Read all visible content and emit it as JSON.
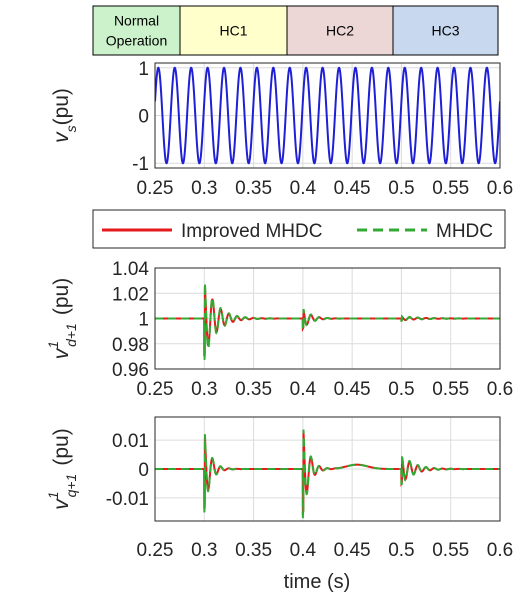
{
  "stages": [
    {
      "label_lines": [
        "Normal",
        "Operation"
      ],
      "color": "#ccf2cc"
    },
    {
      "label_lines": [
        "HC1"
      ],
      "color": "#ffffcc"
    },
    {
      "label_lines": [
        "HC2"
      ],
      "color": "#ecd6d6"
    },
    {
      "label_lines": [
        "HC3"
      ],
      "color": "#c8d8ee"
    }
  ],
  "legend": {
    "items": [
      {
        "label": "Improved MHDC",
        "color": "#e41a1c",
        "dash": "solid"
      },
      {
        "label": "MHDC",
        "color": "#33aa33",
        "dash": "dashed"
      }
    ]
  },
  "xaxis": {
    "title": "time (s)",
    "ticks": [
      "0.25",
      "0.3",
      "0.35",
      "0.4",
      "0.45",
      "0.5",
      "0.55",
      "0.6"
    ]
  },
  "chart_data": [
    {
      "type": "line",
      "ylabel_main": "v",
      "ylabel_sub": "s",
      "ylabel_unit": "(pu)",
      "xlim": [
        0.25,
        0.6
      ],
      "ylim": [
        -1.1,
        1.1
      ],
      "yticks": [
        "1",
        "0",
        "-1"
      ],
      "grid": true,
      "series": [
        {
          "color": "#1f1fd6",
          "signal": "sinusoid",
          "amplitude": 1.0,
          "frequency_hz": 60
        }
      ]
    },
    {
      "type": "line",
      "ylabel_main": "v",
      "ylabel_sup": "1",
      "ylabel_sub": "d+1",
      "ylabel_unit": "(pu)",
      "xlim": [
        0.25,
        0.6
      ],
      "ylim": [
        0.96,
        1.04
      ],
      "yticks": [
        "1.04",
        "1.02",
        "1",
        "0.98",
        "0.96"
      ],
      "grid": true,
      "series": [
        {
          "name": "Improved MHDC",
          "color": "#e41a1c",
          "baseline": 1.0,
          "transients": [
            {
              "t": 0.3,
              "amp": 0.03,
              "decay": 0.012
            },
            {
              "t": 0.4,
              "amp": 0.008,
              "decay": 0.008
            },
            {
              "t": 0.5,
              "amp": 0.0015,
              "decay": 0.02
            }
          ]
        },
        {
          "name": "MHDC",
          "color": "#33aa33",
          "baseline": 1.0,
          "transients": [
            {
              "t": 0.3,
              "amp": 0.033,
              "decay": 0.012
            },
            {
              "t": 0.4,
              "amp": 0.009,
              "decay": 0.008
            },
            {
              "t": 0.5,
              "amp": 0.0018,
              "decay": 0.02
            }
          ]
        }
      ]
    },
    {
      "type": "line",
      "ylabel_main": "v",
      "ylabel_sup": "1",
      "ylabel_sub": "q+1",
      "ylabel_unit": "(pu)",
      "xlim": [
        0.25,
        0.6
      ],
      "ylim": [
        -0.018,
        0.018
      ],
      "yticks": [
        "0.01",
        "0",
        "-0.01"
      ],
      "grid": true,
      "series": [
        {
          "name": "Improved MHDC",
          "color": "#e41a1c",
          "baseline": 0.0,
          "transients": [
            {
              "t": 0.3,
              "amp": 0.014,
              "decay": 0.006
            },
            {
              "t": 0.4,
              "amp": 0.016,
              "decay": 0.006
            },
            {
              "t": 0.5,
              "amp": 0.005,
              "decay": 0.012
            }
          ],
          "bump": {
            "center": 0.455,
            "height": 0.0015,
            "width": 0.015
          }
        },
        {
          "name": "MHDC",
          "color": "#33aa33",
          "baseline": 0.0,
          "transients": [
            {
              "t": 0.3,
              "amp": 0.015,
              "decay": 0.006
            },
            {
              "t": 0.4,
              "amp": 0.017,
              "decay": 0.006
            },
            {
              "t": 0.5,
              "amp": 0.0055,
              "decay": 0.012
            }
          ],
          "bump": {
            "center": 0.455,
            "height": 0.0015,
            "width": 0.015
          }
        }
      ]
    }
  ]
}
